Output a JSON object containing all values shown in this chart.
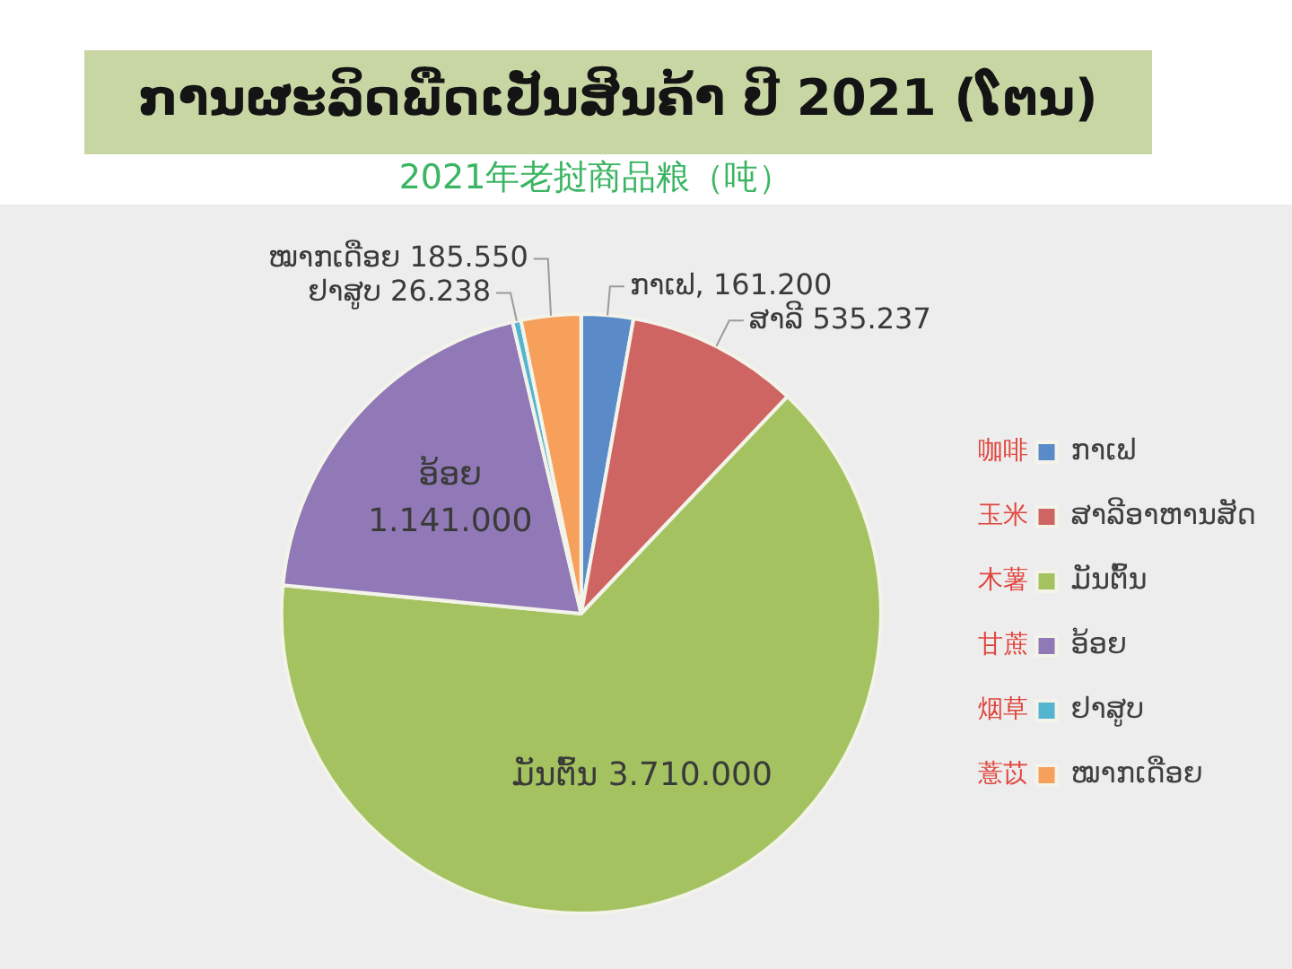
{
  "chart_data": {
    "type": "pie",
    "title": "ການຜະລິດພືດເປັນສິນຄ້າ ປີ 2021 (ໂຕນ)",
    "subtitle": "2021年老挝商品粮（吨）",
    "categories": [
      "ກາເຟ",
      "ສາລີອາຫານສັດ",
      "ມັນຕົ້ນ",
      "ອ້ອຍ",
      "ຢາສູບ",
      "ໝາກເດືອຍ"
    ],
    "values": [
      161200,
      535237,
      3710000,
      1141000,
      26238,
      185550
    ],
    "colors": [
      "#5a8bc8",
      "#cf6563",
      "#a4c360",
      "#9079b6",
      "#53b5cf",
      "#f6a05c"
    ],
    "value_labels": [
      "ກາເຟ, 161.200",
      "ສາລີ 535.237",
      "ມັນຕົ້ນ 3.710.000",
      "ອ້ອຍ 1.141.000",
      "ຢາສູບ 26.238",
      "ໝາກເດືອຍ 185.550"
    ],
    "legend": "right",
    "annotations": [
      "咖啡",
      "玉米",
      "木薯",
      "甘蔗",
      "烟草",
      "薏苡"
    ]
  }
}
